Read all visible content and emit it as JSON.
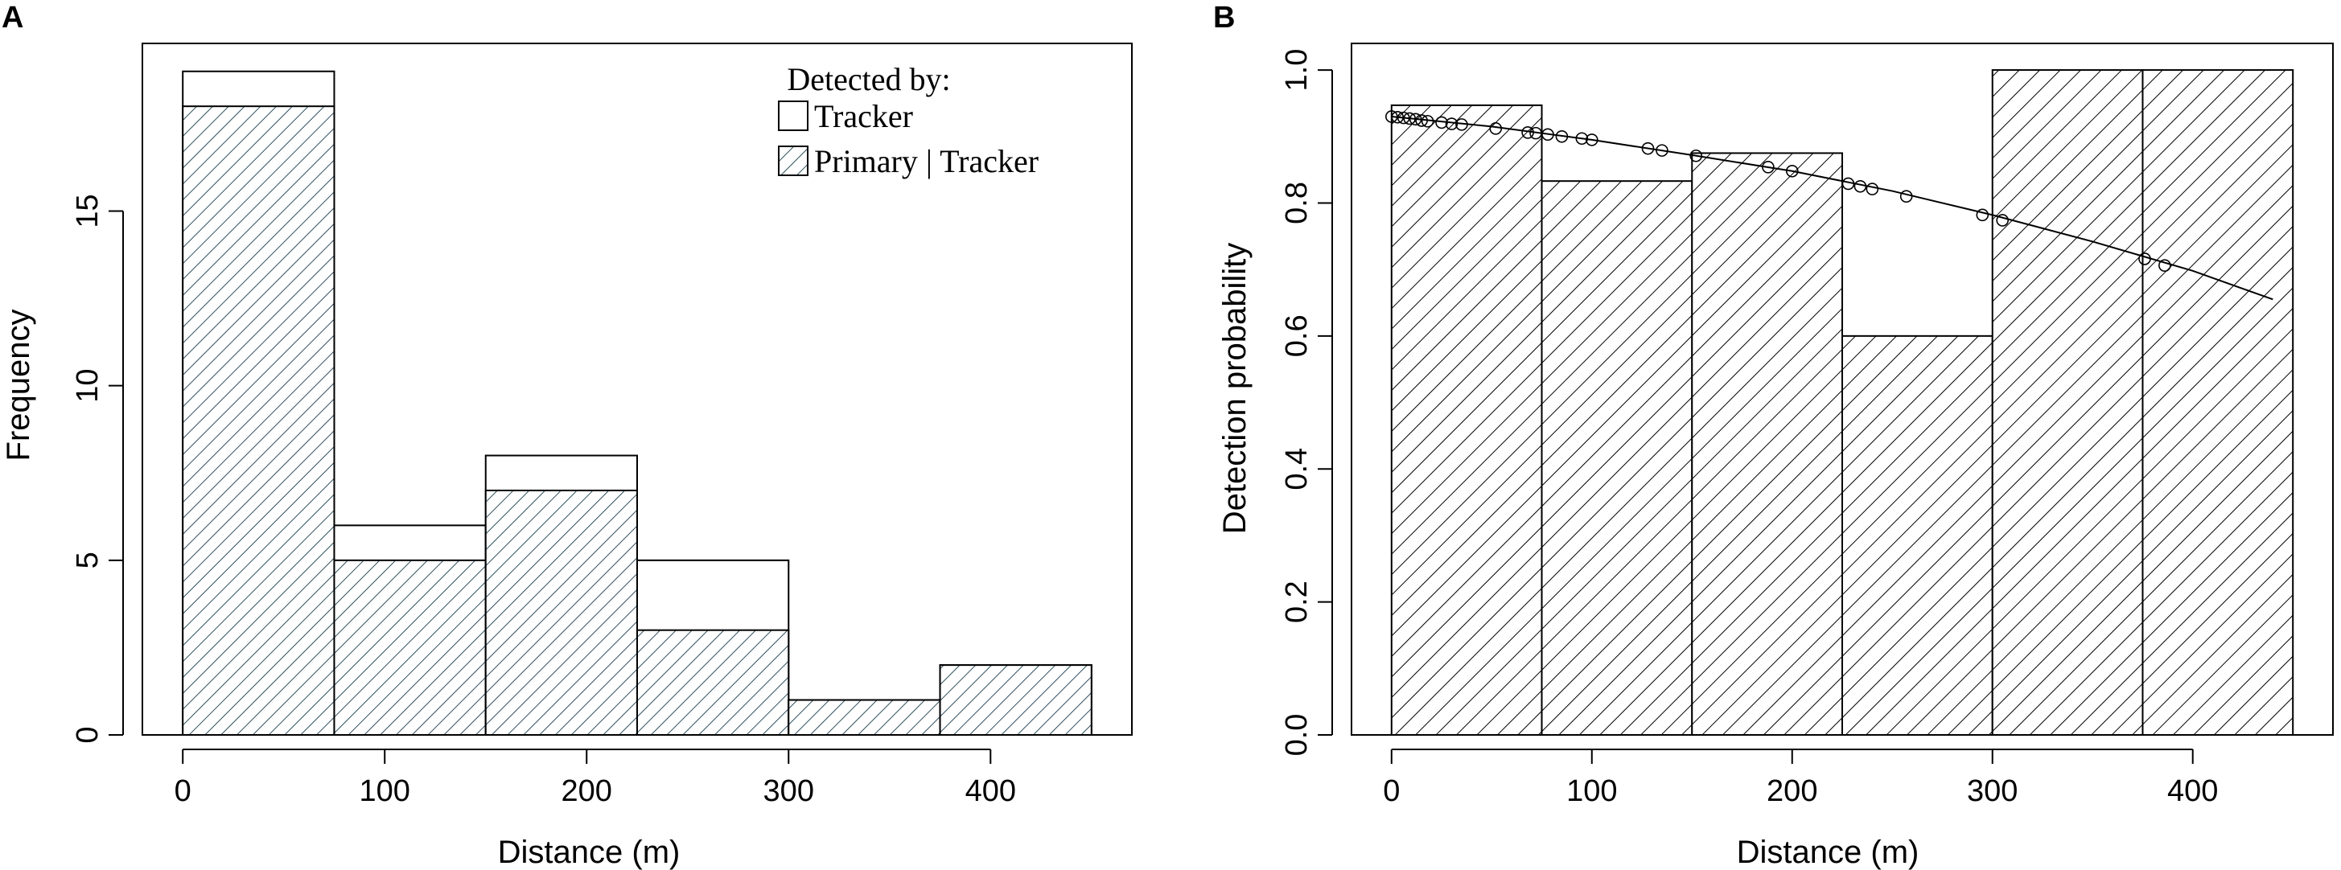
{
  "panels": {
    "left_label": "A",
    "right_label": "B"
  },
  "chart_data": [
    {
      "type": "bar",
      "subtype": "histogram",
      "bins": [
        [
          0,
          75
        ],
        [
          75,
          150
        ],
        [
          150,
          225
        ],
        [
          225,
          300
        ],
        [
          300,
          375
        ],
        [
          375,
          450
        ]
      ],
      "series": [
        {
          "name": "Tracker",
          "values": [
            19,
            6,
            8,
            5,
            1,
            2
          ]
        },
        {
          "name": "Primary | Tracker",
          "values": [
            18,
            5,
            7,
            3,
            1,
            2
          ]
        }
      ],
      "xlabel": "Distance (m)",
      "ylabel": "Frequency",
      "xticks": [
        "0",
        "100",
        "200",
        "300",
        "400"
      ],
      "xtick_values": [
        0,
        100,
        200,
        300,
        400
      ],
      "yticks": [
        "0",
        "5",
        "10",
        "15"
      ],
      "ytick_values": [
        0,
        5,
        10,
        15
      ],
      "xlim": [
        -20,
        470
      ],
      "ylim": [
        0,
        19.8
      ],
      "legend": {
        "title": "Detected by:",
        "entries": [
          "Tracker",
          "Primary | Tracker"
        ],
        "position": "top-right"
      },
      "grid": false
    },
    {
      "type": "bar",
      "subtype": "histogram with fitted detection curve",
      "bins": [
        [
          0,
          75
        ],
        [
          75,
          150
        ],
        [
          150,
          225
        ],
        [
          225,
          300
        ],
        [
          300,
          375
        ],
        [
          375,
          450
        ]
      ],
      "values": [
        0.947,
        0.833,
        0.875,
        0.6,
        1.0,
        1.0
      ],
      "curve": {
        "x": [
          0,
          50,
          100,
          150,
          200,
          250,
          300,
          350,
          400,
          440
        ],
        "y": [
          0.93,
          0.915,
          0.895,
          0.872,
          0.848,
          0.818,
          0.782,
          0.742,
          0.698,
          0.655
        ]
      },
      "points": {
        "x": [
          0,
          3,
          6,
          9,
          12,
          15,
          18,
          25,
          30,
          35,
          52,
          68,
          72,
          78,
          85,
          95,
          100,
          128,
          135,
          152,
          188,
          200,
          228,
          234,
          240,
          257,
          295,
          305,
          376,
          386
        ],
        "y": [
          0.93,
          0.929,
          0.928,
          0.927,
          0.926,
          0.924,
          0.923,
          0.921,
          0.919,
          0.918,
          0.912,
          0.906,
          0.905,
          0.903,
          0.9,
          0.897,
          0.895,
          0.882,
          0.879,
          0.871,
          0.854,
          0.848,
          0.829,
          0.825,
          0.821,
          0.81,
          0.782,
          0.774,
          0.716,
          0.706
        ]
      },
      "xlabel": "Distance (m)",
      "ylabel": "Detection probability",
      "xticks": [
        "0",
        "100",
        "200",
        "300",
        "400"
      ],
      "xtick_values": [
        0,
        100,
        200,
        300,
        400
      ],
      "yticks": [
        "0.0",
        "0.2",
        "0.4",
        "0.6",
        "0.8",
        "1.0"
      ],
      "ytick_values": [
        0,
        0.2,
        0.4,
        0.6,
        0.8,
        1.0
      ],
      "xlim": [
        -20,
        470
      ],
      "ylim": [
        0,
        1.04
      ],
      "grid": false
    }
  ]
}
